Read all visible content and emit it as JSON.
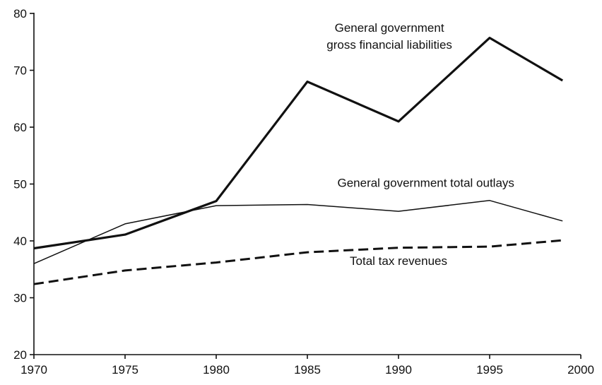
{
  "chart_data": {
    "type": "line",
    "title": "",
    "xlabel": "",
    "ylabel": "",
    "xlim": [
      1970,
      2000
    ],
    "ylim": [
      20,
      80
    ],
    "xticks": [
      1970,
      1975,
      1980,
      1985,
      1990,
      1995,
      2000
    ],
    "yticks": [
      20,
      30,
      40,
      50,
      60,
      70,
      80
    ],
    "grid": false,
    "legend": "none",
    "series": [
      {
        "style": "thick-solid",
        "color": "#111111",
        "x": [
          1970,
          1975,
          1980,
          1985,
          1990,
          1995,
          1999
        ],
        "y": [
          38.7,
          41.1,
          47.0,
          68.0,
          61.0,
          75.7,
          68.2
        ]
      },
      {
        "style": "thin-solid",
        "color": "#111111",
        "x": [
          1970,
          1975,
          1980,
          1985,
          1990,
          1995,
          1999
        ],
        "y": [
          36.0,
          43.0,
          46.2,
          46.4,
          45.2,
          47.1,
          43.5
        ]
      },
      {
        "style": "dashed",
        "color": "#111111",
        "x": [
          1970,
          1975,
          1980,
          1985,
          1990,
          1995,
          1999
        ],
        "y": [
          32.4,
          34.8,
          36.2,
          38.0,
          38.8,
          39.0,
          40.1
        ]
      }
    ],
    "annotations": [
      {
        "text": "General government",
        "x": 1989.5,
        "y": 76.8
      },
      {
        "text": "gross financial liabilities",
        "x": 1989.5,
        "y": 73.8
      },
      {
        "text": "General government total outlays",
        "x": 1991.5,
        "y": 49.5
      },
      {
        "text": "Total tax revenues",
        "x": 1990.0,
        "y": 35.8
      }
    ]
  }
}
